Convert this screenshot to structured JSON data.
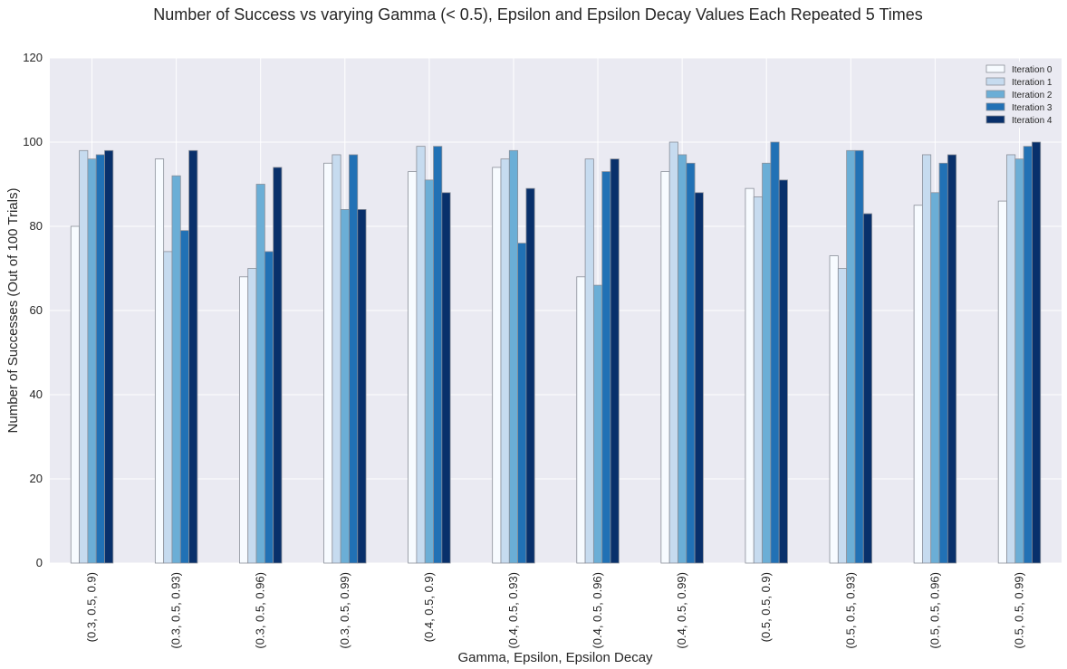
{
  "chart_data": {
    "type": "bar",
    "title": "Number of Success vs varying Gamma (< 0.5), Epsilon and Epsilon Decay Values Each Repeated 5 Times",
    "xlabel": "Gamma, Epsilon, Epsilon Decay",
    "ylabel": "Number of Successes (Out of 100 Trials)",
    "ylim": [
      0,
      120
    ],
    "yticks": [
      "0",
      "20",
      "40",
      "60",
      "80",
      "100",
      "120"
    ],
    "grid": true,
    "legend_position": "top-right",
    "background_color": "#eaeaf2",
    "categories": [
      "(0.3, 0.5, 0.9)",
      "(0.3, 0.5, 0.93)",
      "(0.3, 0.5, 0.96)",
      "(0.3, 0.5, 0.99)",
      "(0.4, 0.5, 0.9)",
      "(0.4, 0.5, 0.93)",
      "(0.4, 0.5, 0.96)",
      "(0.4, 0.5, 0.99)",
      "(0.5, 0.5, 0.9)",
      "(0.5, 0.5, 0.93)",
      "(0.5, 0.5, 0.96)",
      "(0.5, 0.5, 0.99)"
    ],
    "series": [
      {
        "name": "Iteration 0",
        "color": "#f7fbff",
        "values": [
          80,
          96,
          68,
          95,
          93,
          94,
          68,
          93,
          89,
          73,
          85,
          86
        ]
      },
      {
        "name": "Iteration 1",
        "color": "#c6dbef",
        "values": [
          98,
          74,
          70,
          97,
          99,
          96,
          96,
          100,
          87,
          70,
          97,
          97
        ]
      },
      {
        "name": "Iteration 2",
        "color": "#6baed6",
        "values": [
          96,
          92,
          90,
          84,
          91,
          98,
          66,
          97,
          95,
          98,
          88,
          96
        ]
      },
      {
        "name": "Iteration 3",
        "color": "#2171b5",
        "values": [
          97,
          79,
          74,
          97,
          99,
          76,
          93,
          95,
          100,
          98,
          95,
          99
        ]
      },
      {
        "name": "Iteration 4",
        "color": "#08306b",
        "values": [
          98,
          98,
          94,
          84,
          88,
          89,
          96,
          88,
          91,
          83,
          97,
          100
        ]
      }
    ]
  }
}
